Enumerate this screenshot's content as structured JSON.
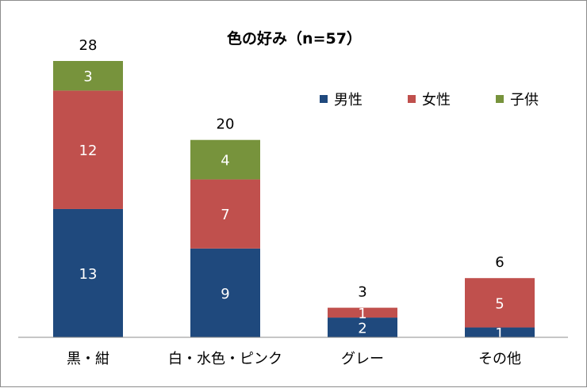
{
  "chart_data": {
    "type": "bar",
    "stacked": true,
    "title": "色の好み（n=57）",
    "categories": [
      "黒・紺",
      "白・水色・ピンク",
      "グレー",
      "その他"
    ],
    "series": [
      {
        "name": "男性",
        "color": "#1f497d",
        "values": [
          13,
          9,
          2,
          1
        ]
      },
      {
        "name": "女性",
        "color": "#c0504d",
        "values": [
          12,
          7,
          1,
          5
        ]
      },
      {
        "name": "子供",
        "color": "#77933c",
        "values": [
          3,
          4,
          0,
          0
        ]
      }
    ],
    "totals": [
      28,
      20,
      3,
      6
    ],
    "ylim": [
      0,
      28
    ],
    "legend_position": "top-right",
    "grid": false
  }
}
